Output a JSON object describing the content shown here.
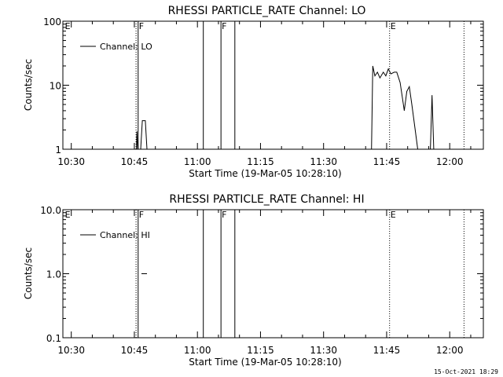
{
  "chart_data": [
    {
      "type": "line",
      "title": "RHESSI PARTICLE_RATE Channel: LO",
      "xlabel": "Start Time (19-Mar-05 10:28:10)",
      "ylabel": "Counts/sec",
      "y_scale": "log",
      "ylim": [
        1,
        100
      ],
      "xlim": [
        "10:28",
        "12:08"
      ],
      "y_ticks": [
        "1",
        "10",
        "100"
      ],
      "x_ticks": [
        "10:30",
        "10:45",
        "11:00",
        "11:15",
        "11:30",
        "11:45",
        "12:00"
      ],
      "grid": false,
      "legend": {
        "placement": "top-left",
        "entries": [
          "Channel: LO"
        ]
      },
      "series": [
        {
          "name": "Channel: LO",
          "segments": [
            [
              [
                "10:45.5",
                1.0
              ],
              [
                "10:45.6",
                1.9
              ],
              [
                "10:45.8",
                1.0
              ]
            ],
            [
              [
                "10:46.5",
                1.0
              ],
              [
                "10:46.9",
                2.8
              ],
              [
                "10:47.6",
                2.8
              ],
              [
                "10:48.0",
                1.0
              ]
            ],
            [
              [
                "11:41.4",
                1.0
              ],
              [
                "11:41.7",
                20
              ],
              [
                "11:42.2",
                14
              ],
              [
                "11:42.8",
                16
              ],
              [
                "11:43.4",
                13
              ],
              [
                "11:44.2",
                16
              ],
              [
                "11:44.8",
                14
              ],
              [
                "11:45.4",
                18
              ],
              [
                "11:46.0",
                15
              ],
              [
                "11:46.8",
                16
              ],
              [
                "11:47.4",
                16
              ],
              [
                "11:48.2",
                11
              ],
              [
                "11:48.8",
                6
              ],
              [
                "11:49.2",
                4
              ],
              [
                "11:49.8",
                8
              ],
              [
                "11:50.4",
                9.5
              ],
              [
                "11:51.0",
                5
              ],
              [
                "11:51.8",
                2
              ],
              [
                "11:52.4",
                1.0
              ]
            ],
            [
              [
                "11:55.4",
                1.0
              ],
              [
                "11:55.8",
                7
              ],
              [
                "11:56.2",
                1.0
              ]
            ]
          ]
        }
      ],
      "markers": [
        {
          "time": "10:28.3",
          "style": "none",
          "label": "E"
        },
        {
          "time": "10:45.4",
          "style": "dotted",
          "label": ""
        },
        {
          "time": "10:45.9",
          "style": "solid",
          "label": "F"
        },
        {
          "time": "11:01.4",
          "style": "solid",
          "label": ""
        },
        {
          "time": "11:05.6",
          "style": "solid",
          "label": "F"
        },
        {
          "time": "11:08.9",
          "style": "solid",
          "label": ""
        },
        {
          "time": "11:45.7",
          "style": "dotted",
          "label": "E"
        },
        {
          "time": "12:03.4",
          "style": "dotted",
          "label": ""
        }
      ]
    },
    {
      "type": "line",
      "title": "RHESSI PARTICLE_RATE Channel: HI",
      "xlabel": "Start Time (19-Mar-05 10:28:10)",
      "ylabel": "Counts/sec",
      "y_scale": "log",
      "ylim": [
        0.1,
        10
      ],
      "xlim": [
        "10:28",
        "12:08"
      ],
      "y_ticks": [
        "0.1",
        "1.0",
        "10.0"
      ],
      "x_ticks": [
        "10:30",
        "10:45",
        "11:00",
        "11:15",
        "11:30",
        "11:45",
        "12:00"
      ],
      "grid": false,
      "legend": {
        "placement": "top-left",
        "entries": [
          "Channel: HI"
        ]
      },
      "series": [
        {
          "name": "Channel: HI",
          "segments": [
            [
              [
                "10:46.7",
                1.0
              ],
              [
                "10:48.0",
                1.0
              ]
            ]
          ]
        }
      ],
      "markers": [
        {
          "time": "10:28.3",
          "style": "none",
          "label": "E"
        },
        {
          "time": "10:45.4",
          "style": "dotted",
          "label": ""
        },
        {
          "time": "10:45.9",
          "style": "solid",
          "label": "F"
        },
        {
          "time": "11:01.4",
          "style": "solid",
          "label": ""
        },
        {
          "time": "11:05.6",
          "style": "solid",
          "label": "F"
        },
        {
          "time": "11:08.9",
          "style": "solid",
          "label": ""
        },
        {
          "time": "11:45.7",
          "style": "dotted",
          "label": "E"
        },
        {
          "time": "12:03.4",
          "style": "dotted",
          "label": ""
        }
      ]
    }
  ],
  "footer": {
    "timestamp": "15-Oct-2021 18:29"
  }
}
